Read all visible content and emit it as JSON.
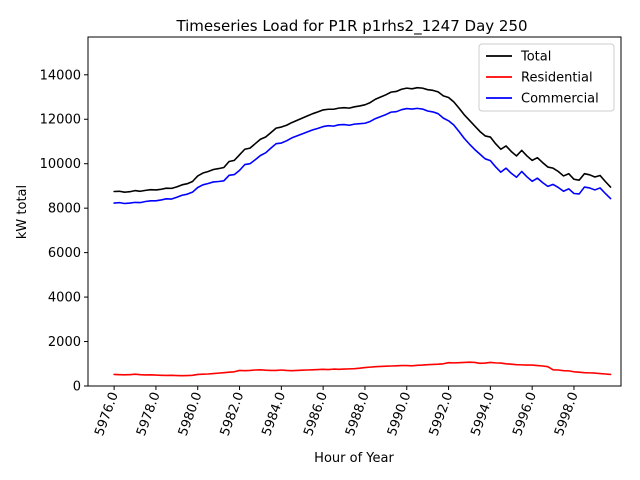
{
  "chart_data": {
    "type": "line",
    "title": "Timeseries Load for P1R p1rhs2_1247  Day 250",
    "xlabel": "Hour of Year",
    "ylabel": "kW total",
    "xlim": [
      5974.75,
      6000.25
    ],
    "ylim": [
      0,
      15700
    ],
    "x_ticks": [
      5976,
      5978,
      5980,
      5982,
      5984,
      5986,
      5988,
      5990,
      5992,
      5994,
      5996,
      5998
    ],
    "x_tick_labels": [
      "5976.0",
      "5978.0",
      "5980.0",
      "5982.0",
      "5984.0",
      "5986.0",
      "5988.0",
      "5990.0",
      "5992.0",
      "5994.0",
      "5996.0",
      "5998.0"
    ],
    "y_ticks": [
      0,
      2000,
      4000,
      6000,
      8000,
      10000,
      12000,
      14000
    ],
    "y_tick_labels": [
      "0",
      "2000",
      "4000",
      "6000",
      "8000",
      "10000",
      "12000",
      "14000"
    ],
    "legend_position": "top-right",
    "series": [
      {
        "name": "Total",
        "color": "#000000",
        "x": [
          5976.0,
          5976.25,
          5976.5,
          5976.75,
          5977.0,
          5977.25,
          5977.5,
          5977.75,
          5978.0,
          5978.25,
          5978.5,
          5978.75,
          5979.0,
          5979.25,
          5979.5,
          5979.75,
          5980.0,
          5980.25,
          5980.5,
          5980.75,
          5981.0,
          5981.25,
          5981.5,
          5981.75,
          5982.0,
          5982.25,
          5982.5,
          5982.75,
          5983.0,
          5983.25,
          5983.5,
          5983.75,
          5984.0,
          5984.25,
          5984.5,
          5984.75,
          5985.0,
          5985.25,
          5985.5,
          5985.75,
          5986.0,
          5986.25,
          5986.5,
          5986.75,
          5987.0,
          5987.25,
          5987.5,
          5987.75,
          5988.0,
          5988.25,
          5988.5,
          5988.75,
          5989.0,
          5989.25,
          5989.5,
          5989.75,
          5990.0,
          5990.25,
          5990.5,
          5990.75,
          5991.0,
          5991.25,
          5991.5,
          5991.75,
          5992.0,
          5992.25,
          5992.5,
          5992.75,
          5993.0,
          5993.25,
          5993.5,
          5993.75,
          5994.0,
          5994.25,
          5994.5,
          5994.75,
          5995.0,
          5995.25,
          5995.5,
          5995.75,
          5996.0,
          5996.25,
          5996.5,
          5996.75,
          5997.0,
          5997.25,
          5997.5,
          5997.75,
          5998.0,
          5998.25,
          5998.5,
          5998.75,
          5999.0,
          5999.25,
          5999.5,
          5999.75
        ],
        "values": [
          8750,
          8760,
          8720,
          8740,
          8790,
          8760,
          8800,
          8830,
          8820,
          8850,
          8900,
          8890,
          8960,
          9050,
          9100,
          9200,
          9450,
          9580,
          9650,
          9740,
          9780,
          9830,
          10100,
          10150,
          10400,
          10650,
          10700,
          10900,
          11100,
          11200,
          11400,
          11600,
          11650,
          11730,
          11850,
          11950,
          12050,
          12150,
          12250,
          12330,
          12420,
          12450,
          12450,
          12500,
          12520,
          12500,
          12560,
          12600,
          12650,
          12750,
          12900,
          13000,
          13100,
          13220,
          13250,
          13350,
          13400,
          13370,
          13420,
          13400,
          13330,
          13300,
          13230,
          13050,
          12980,
          12780,
          12500,
          12200,
          11950,
          11700,
          11450,
          11250,
          11200,
          10900,
          10650,
          10800,
          10550,
          10350,
          10600,
          10350,
          10150,
          10270,
          10050,
          9850,
          9800,
          9650,
          9450,
          9550,
          9300,
          9260,
          9550,
          9500,
          9400,
          9470,
          9200,
          8950
        ]
      },
      {
        "name": "Residential",
        "color": "#ff0000",
        "x": [
          5976.0,
          5976.25,
          5976.5,
          5976.75,
          5977.0,
          5977.25,
          5977.5,
          5977.75,
          5978.0,
          5978.25,
          5978.5,
          5978.75,
          5979.0,
          5979.25,
          5979.5,
          5979.75,
          5980.0,
          5980.25,
          5980.5,
          5980.75,
          5981.0,
          5981.25,
          5981.5,
          5981.75,
          5982.0,
          5982.25,
          5982.5,
          5982.75,
          5983.0,
          5983.25,
          5983.5,
          5983.75,
          5984.0,
          5984.25,
          5984.5,
          5984.75,
          5985.0,
          5985.25,
          5985.5,
          5985.75,
          5986.0,
          5986.25,
          5986.5,
          5986.75,
          5987.0,
          5987.25,
          5987.5,
          5987.75,
          5988.0,
          5988.25,
          5988.5,
          5988.75,
          5989.0,
          5989.25,
          5989.5,
          5989.75,
          5990.0,
          5990.25,
          5990.5,
          5990.75,
          5991.0,
          5991.25,
          5991.5,
          5991.75,
          5992.0,
          5992.25,
          5992.5,
          5992.75,
          5993.0,
          5993.25,
          5993.5,
          5993.75,
          5994.0,
          5994.25,
          5994.5,
          5994.75,
          5995.0,
          5995.25,
          5995.5,
          5995.75,
          5996.0,
          5996.25,
          5996.5,
          5996.75,
          5997.0,
          5997.25,
          5997.5,
          5997.75,
          5998.0,
          5998.25,
          5998.5,
          5998.75,
          5999.0,
          5999.25,
          5999.5,
          5999.75
        ],
        "values": [
          520,
          510,
          505,
          510,
          530,
          510,
          500,
          505,
          490,
          480,
          475,
          480,
          470,
          465,
          470,
          480,
          520,
          530,
          540,
          560,
          580,
          600,
          620,
          640,
          700,
          690,
          700,
          720,
          730,
          710,
          700,
          700,
          720,
          700,
          690,
          700,
          710,
          720,
          730,
          740,
          750,
          740,
          760,
          750,
          760,
          770,
          780,
          800,
          830,
          850,
          870,
          880,
          890,
          900,
          910,
          920,
          920,
          910,
          930,
          940,
          960,
          970,
          980,
          1000,
          1050,
          1040,
          1050,
          1060,
          1070,
          1060,
          1020,
          1030,
          1060,
          1040,
          1030,
          1000,
          980,
          960,
          950,
          940,
          940,
          920,
          900,
          870,
          730,
          720,
          690,
          680,
          640,
          620,
          600,
          590,
          580,
          560,
          540,
          520
        ]
      },
      {
        "name": "Commercial",
        "color": "#0000ff",
        "x": [
          5976.0,
          5976.25,
          5976.5,
          5976.75,
          5977.0,
          5977.25,
          5977.5,
          5977.75,
          5978.0,
          5978.25,
          5978.5,
          5978.75,
          5979.0,
          5979.25,
          5979.5,
          5979.75,
          5980.0,
          5980.25,
          5980.5,
          5980.75,
          5981.0,
          5981.25,
          5981.5,
          5981.75,
          5982.0,
          5982.25,
          5982.5,
          5982.75,
          5983.0,
          5983.25,
          5983.5,
          5983.75,
          5984.0,
          5984.25,
          5984.5,
          5984.75,
          5985.0,
          5985.25,
          5985.5,
          5985.75,
          5986.0,
          5986.25,
          5986.5,
          5986.75,
          5987.0,
          5987.25,
          5987.5,
          5987.75,
          5988.0,
          5988.25,
          5988.5,
          5988.75,
          5989.0,
          5989.25,
          5989.5,
          5989.75,
          5990.0,
          5990.25,
          5990.5,
          5990.75,
          5991.0,
          5991.25,
          5991.5,
          5991.75,
          5992.0,
          5992.25,
          5992.5,
          5992.75,
          5993.0,
          5993.25,
          5993.5,
          5993.75,
          5994.0,
          5994.25,
          5994.5,
          5994.75,
          5995.0,
          5995.25,
          5995.5,
          5995.75,
          5996.0,
          5996.25,
          5996.5,
          5996.75,
          5997.0,
          5997.25,
          5997.5,
          5997.75,
          5998.0,
          5998.25,
          5998.5,
          5998.75,
          5999.0,
          5999.25,
          5999.5,
          5999.75
        ],
        "values": [
          8230,
          8250,
          8210,
          8230,
          8260,
          8250,
          8300,
          8330,
          8330,
          8370,
          8420,
          8410,
          8490,
          8580,
          8630,
          8720,
          8930,
          9050,
          9110,
          9180,
          9200,
          9230,
          9480,
          9510,
          9700,
          9960,
          10000,
          10180,
          10370,
          10490,
          10700,
          10900,
          10930,
          11030,
          11160,
          11250,
          11340,
          11430,
          11520,
          11590,
          11670,
          11710,
          11690,
          11750,
          11760,
          11730,
          11780,
          11800,
          11820,
          11900,
          12030,
          12120,
          12210,
          12320,
          12340,
          12430,
          12480,
          12460,
          12490,
          12460,
          12370,
          12330,
          12250,
          12050,
          11930,
          11740,
          11450,
          11140,
          10880,
          10640,
          10430,
          10220,
          10140,
          9860,
          9620,
          9800,
          9570,
          9390,
          9650,
          9410,
          9210,
          9350,
          9150,
          8980,
          9070,
          8930,
          8760,
          8870,
          8660,
          8640,
          8950,
          8910,
          8820,
          8910,
          8660,
          8430
        ]
      }
    ]
  }
}
